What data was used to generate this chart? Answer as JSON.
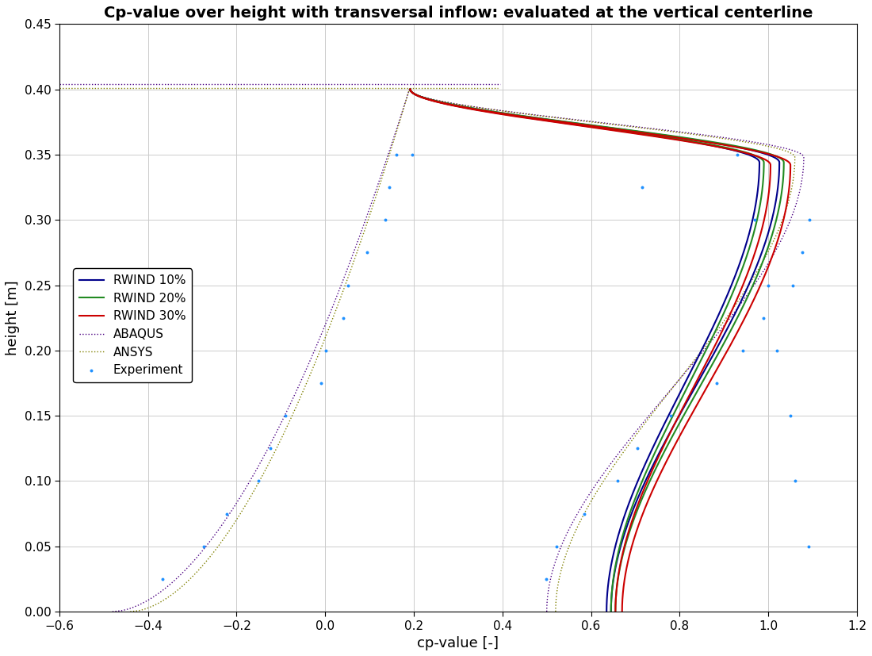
{
  "title": "Cp-value over height with transversal inflow: evaluated at the vertical centerline",
  "xlabel": "cp-value [-]",
  "ylabel": "height [m]",
  "xlim": [
    -0.6,
    1.2
  ],
  "ylim": [
    0,
    0.45
  ],
  "xticks": [
    -0.6,
    -0.4,
    -0.2,
    0.0,
    0.2,
    0.4,
    0.6,
    0.8,
    1.0,
    1.2
  ],
  "yticks": [
    0,
    0.05,
    0.1,
    0.15,
    0.2,
    0.25,
    0.3,
    0.35,
    0.4,
    0.45
  ],
  "series_colors": {
    "rwind10": "#00008B",
    "rwind20": "#228B22",
    "rwind30": "#CC0000",
    "abaqus": "#4B0082",
    "ansys": "#808000",
    "experiment": "#1E90FF"
  },
  "figwidth": 11.0,
  "figheight": 8.27,
  "dpi": 100
}
